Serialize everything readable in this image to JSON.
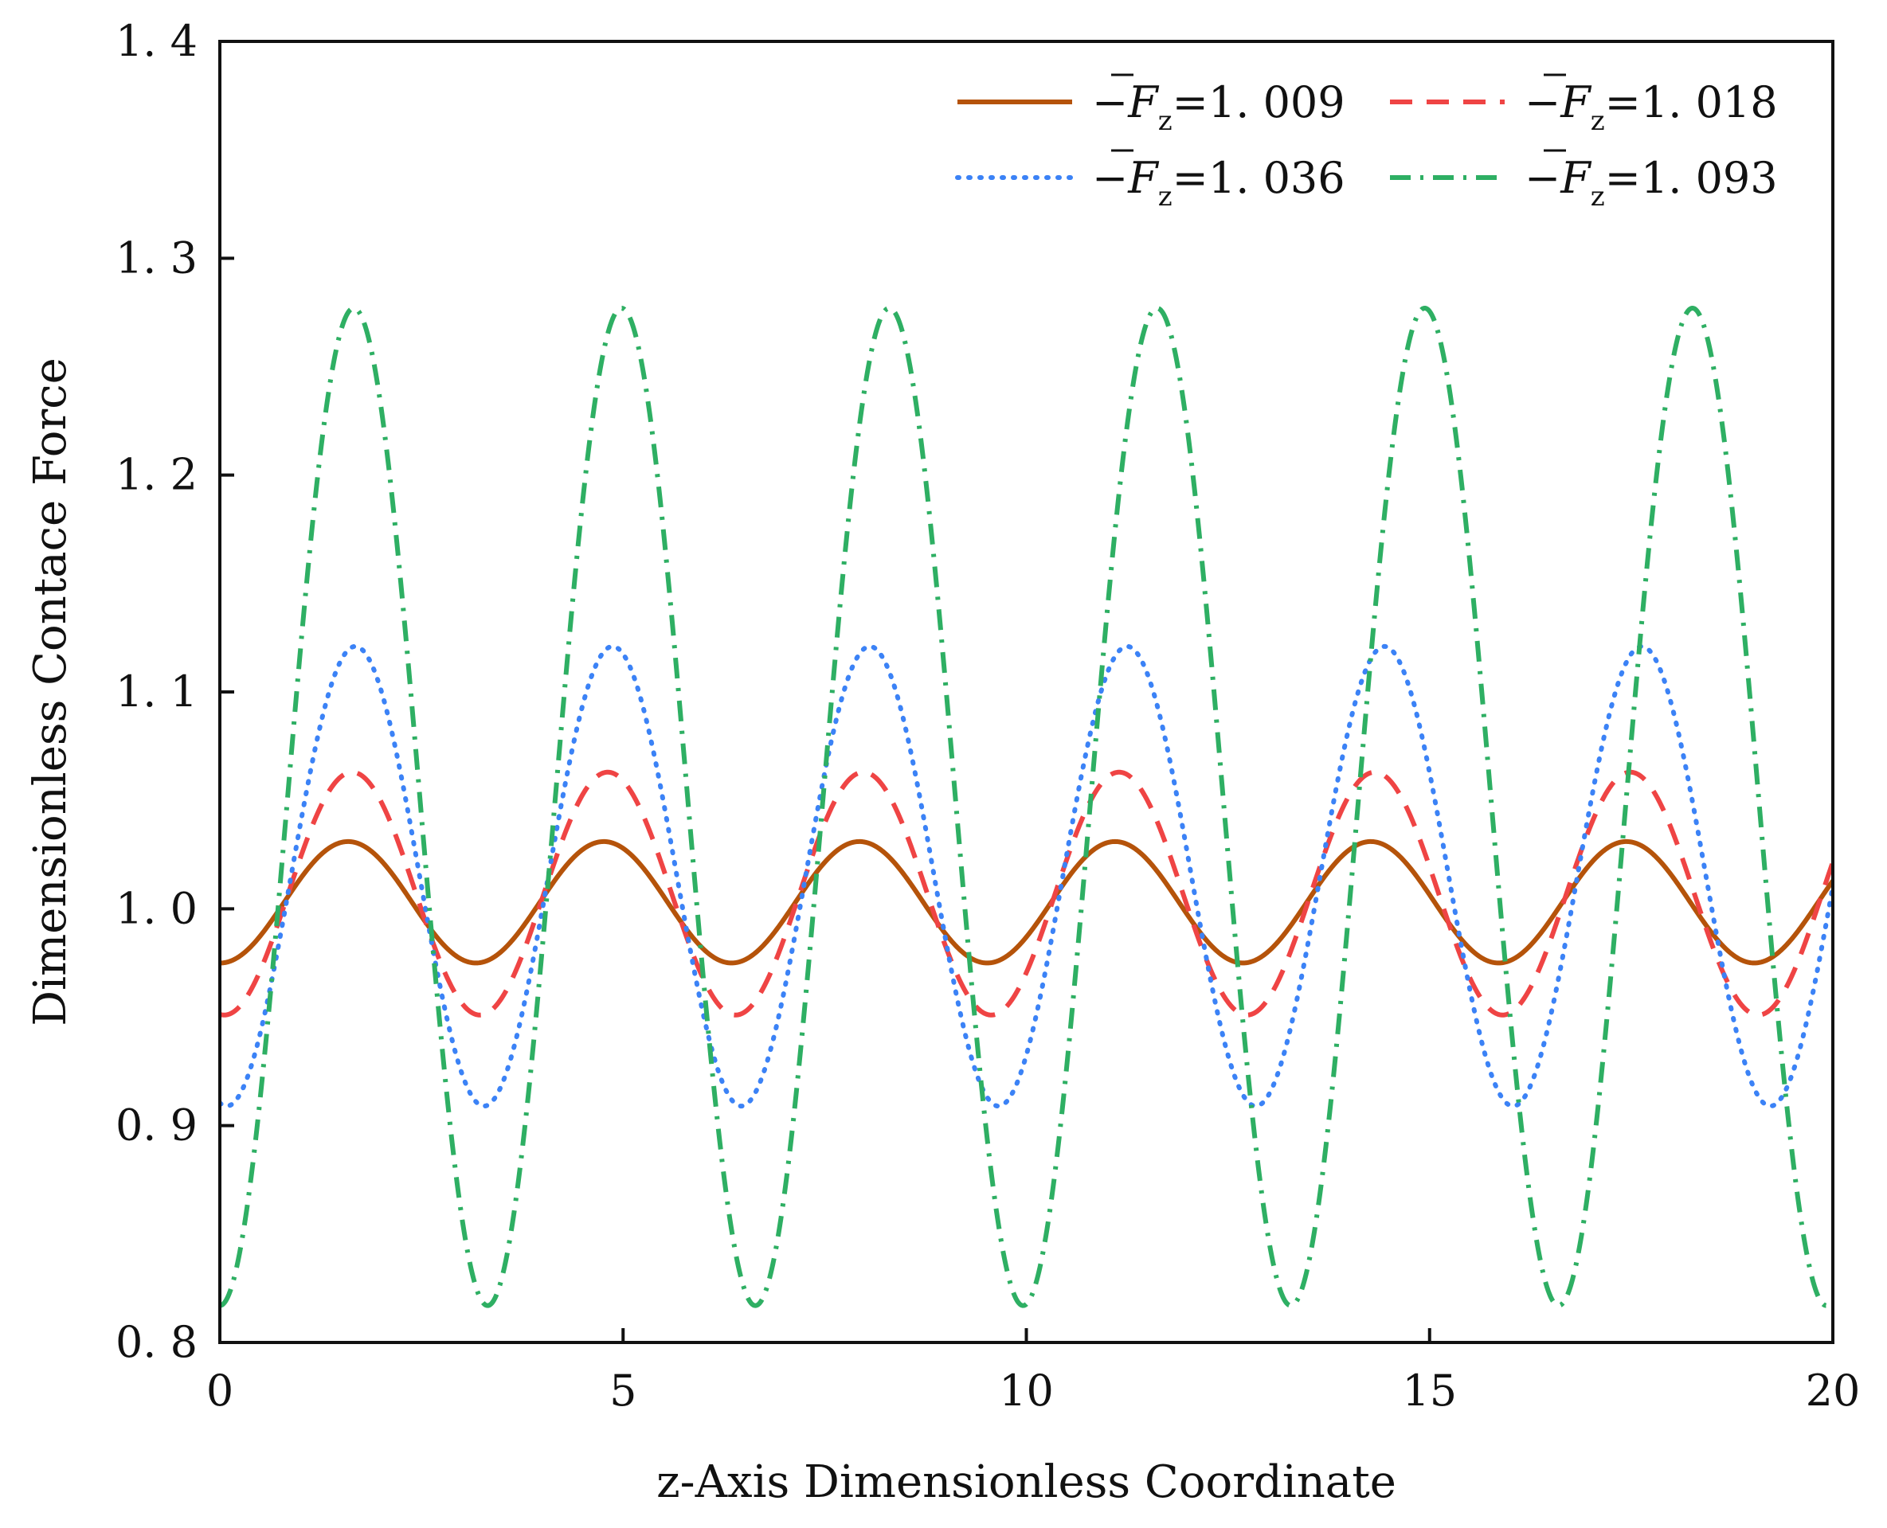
{
  "chart_data": {
    "type": "line",
    "title": "",
    "xlabel": "z-Axis Dimensionless Coordinate",
    "ylabel": "Dimensionless Contace Force",
    "xlim": [
      0,
      20
    ],
    "ylim": [
      0.8,
      1.4
    ],
    "xticks": [
      0,
      5,
      10,
      15,
      20
    ],
    "yticks": [
      0.8,
      0.9,
      1.0,
      1.1,
      1.2,
      1.3,
      1.4
    ],
    "xtick_labels": [
      "0",
      "5",
      "10",
      "15",
      "20"
    ],
    "ytick_labels": [
      "0. 8",
      "0. 9",
      "1. 0",
      "1. 1",
      "1. 2",
      "1. 3",
      "1. 4"
    ],
    "grid": false,
    "legend_placement": "top-right",
    "series": [
      {
        "name": "−F̄z=1. 009",
        "legend_prefix": "−",
        "legend_symbol": "F",
        "legend_subscript": "z",
        "legend_value": "=1. 009",
        "color": "#B5530A",
        "line_style": "solid",
        "mean": 1.003,
        "amplitude": 0.028,
        "period": 3.17,
        "phase": 0.0,
        "peaks_x": [
          1.59,
          4.76,
          7.93,
          11.1,
          14.27,
          17.44
        ],
        "peak_value": 1.031,
        "trough_value": 0.975
      },
      {
        "name": "−F̄z=1. 018",
        "legend_prefix": "−",
        "legend_symbol": "F",
        "legend_subscript": "z",
        "legend_value": "=1. 018",
        "color": "#EF4444",
        "line_style": "dashed",
        "mean": 1.007,
        "amplitude": 0.056,
        "period": 3.17,
        "phase": 0.0,
        "peaks_x": [
          1.64,
          4.8,
          7.96,
          11.13,
          14.3,
          17.47
        ],
        "peak_value": 1.063,
        "trough_value": 0.951
      },
      {
        "name": "−F̄z=1. 036",
        "legend_prefix": "−",
        "legend_symbol": "F",
        "legend_subscript": "z",
        "legend_value": "=1. 036",
        "color": "#3B82F6",
        "line_style": "dotted",
        "mean": 1.015,
        "amplitude": 0.106,
        "period": 3.19,
        "phase": 0.0,
        "peaks_x": [
          1.68,
          4.86,
          8.05,
          11.24,
          14.43,
          17.62
        ],
        "peak_value": 1.121,
        "trough_value": 0.909
      },
      {
        "name": "−F̄z=1. 093",
        "legend_prefix": "−",
        "legend_symbol": "F",
        "legend_subscript": "z",
        "legend_value": "=1. 093",
        "color": "#2EAF63",
        "line_style": "dashdot",
        "mean": 1.047,
        "amplitude": 0.23,
        "period": 3.32,
        "phase": 0.0,
        "peaks_x": [
          1.66,
          4.98,
          8.3,
          11.62,
          14.94,
          18.26
        ],
        "peak_value": 1.277,
        "trough_value": 0.817
      }
    ]
  }
}
